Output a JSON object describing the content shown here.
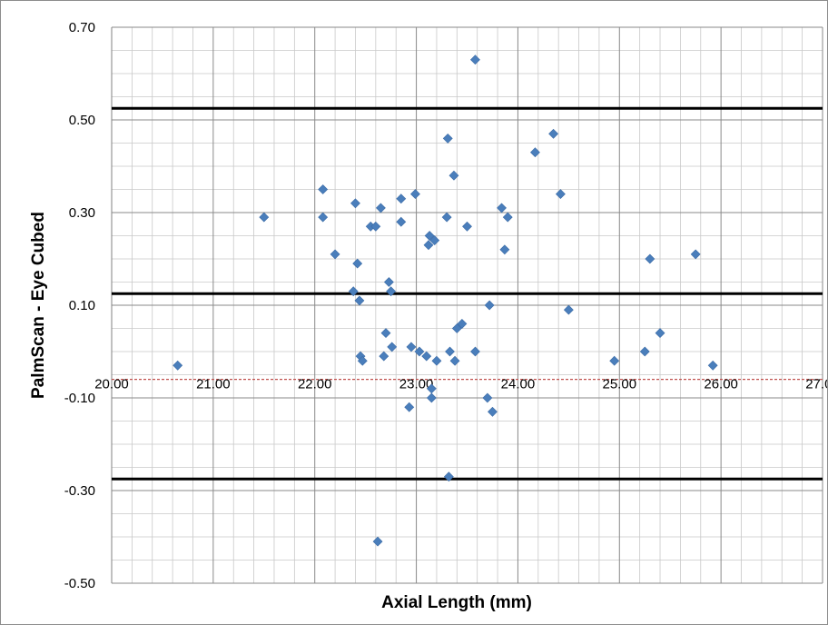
{
  "chart_data": {
    "type": "scatter",
    "title": "",
    "xlabel": "Axial Length (mm)",
    "ylabel": "PalmScan - Eye Cubed",
    "xlim": [
      20.0,
      27.0
    ],
    "ylim": [
      -0.5,
      0.7
    ],
    "x_ticks": [
      "20.00",
      "21.00",
      "22.00",
      "23.00",
      "24.00",
      "25.00",
      "26.00",
      "27.00"
    ],
    "x_tick_values": [
      20,
      21,
      22,
      23,
      24,
      25,
      26,
      27
    ],
    "y_ticks": [
      "0.70",
      "0.50",
      "0.30",
      "0.10",
      "-0.10",
      "-0.30",
      "-0.50"
    ],
    "y_tick_values": [
      0.7,
      0.5,
      0.3,
      0.1,
      -0.1,
      -0.3,
      -0.5
    ],
    "x_axis_crosses_at": -0.06,
    "grid": true,
    "minor_grid": true,
    "legend": "none",
    "reference_lines": [
      {
        "y": 0.525,
        "style": "solid",
        "color": "#000000"
      },
      {
        "y": 0.125,
        "style": "solid",
        "color": "#000000"
      },
      {
        "y": -0.275,
        "style": "solid",
        "color": "#000000"
      },
      {
        "y": -0.06,
        "style": "dashed",
        "color": "#c0504d"
      }
    ],
    "marker_color": "#4a7ebb",
    "points": [
      {
        "x": 20.65,
        "y": -0.03
      },
      {
        "x": 21.5,
        "y": 0.29
      },
      {
        "x": 22.08,
        "y": 0.35
      },
      {
        "x": 22.08,
        "y": 0.29
      },
      {
        "x": 22.2,
        "y": 0.21
      },
      {
        "x": 22.38,
        "y": 0.13
      },
      {
        "x": 22.4,
        "y": 0.32
      },
      {
        "x": 22.42,
        "y": 0.19
      },
      {
        "x": 22.44,
        "y": 0.11
      },
      {
        "x": 22.45,
        "y": -0.01
      },
      {
        "x": 22.47,
        "y": -0.02
      },
      {
        "x": 22.55,
        "y": 0.27
      },
      {
        "x": 22.6,
        "y": 0.27
      },
      {
        "x": 22.62,
        "y": -0.41
      },
      {
        "x": 22.65,
        "y": 0.31
      },
      {
        "x": 22.68,
        "y": -0.01
      },
      {
        "x": 22.7,
        "y": 0.04
      },
      {
        "x": 22.73,
        "y": 0.15
      },
      {
        "x": 22.75,
        "y": 0.13
      },
      {
        "x": 22.76,
        "y": 0.01
      },
      {
        "x": 22.85,
        "y": 0.33
      },
      {
        "x": 22.85,
        "y": 0.28
      },
      {
        "x": 22.93,
        "y": -0.12
      },
      {
        "x": 22.95,
        "y": 0.01
      },
      {
        "x": 22.99,
        "y": 0.34
      },
      {
        "x": 23.03,
        "y": 0.0
      },
      {
        "x": 23.1,
        "y": -0.01
      },
      {
        "x": 23.12,
        "y": 0.23
      },
      {
        "x": 23.13,
        "y": 0.25
      },
      {
        "x": 23.15,
        "y": -0.08
      },
      {
        "x": 23.15,
        "y": -0.1
      },
      {
        "x": 23.18,
        "y": 0.24
      },
      {
        "x": 23.2,
        "y": -0.02
      },
      {
        "x": 23.3,
        "y": 0.29
      },
      {
        "x": 23.31,
        "y": 0.46
      },
      {
        "x": 23.32,
        "y": -0.27
      },
      {
        "x": 23.33,
        "y": 0.0
      },
      {
        "x": 23.37,
        "y": 0.38
      },
      {
        "x": 23.38,
        "y": -0.02
      },
      {
        "x": 23.4,
        "y": 0.05
      },
      {
        "x": 23.45,
        "y": 0.06
      },
      {
        "x": 23.5,
        "y": 0.27
      },
      {
        "x": 23.58,
        "y": 0.63
      },
      {
        "x": 23.58,
        "y": 0.0
      },
      {
        "x": 23.7,
        "y": -0.1
      },
      {
        "x": 23.72,
        "y": 0.1
      },
      {
        "x": 23.75,
        "y": -0.13
      },
      {
        "x": 23.84,
        "y": 0.31
      },
      {
        "x": 23.87,
        "y": 0.22
      },
      {
        "x": 23.9,
        "y": 0.29
      },
      {
        "x": 24.17,
        "y": 0.43
      },
      {
        "x": 24.35,
        "y": 0.47
      },
      {
        "x": 24.42,
        "y": 0.34
      },
      {
        "x": 24.5,
        "y": 0.09
      },
      {
        "x": 24.95,
        "y": -0.02
      },
      {
        "x": 25.25,
        "y": 0.0
      },
      {
        "x": 25.3,
        "y": 0.2
      },
      {
        "x": 25.4,
        "y": 0.04
      },
      {
        "x": 25.75,
        "y": 0.21
      },
      {
        "x": 25.92,
        "y": -0.03
      }
    ]
  }
}
